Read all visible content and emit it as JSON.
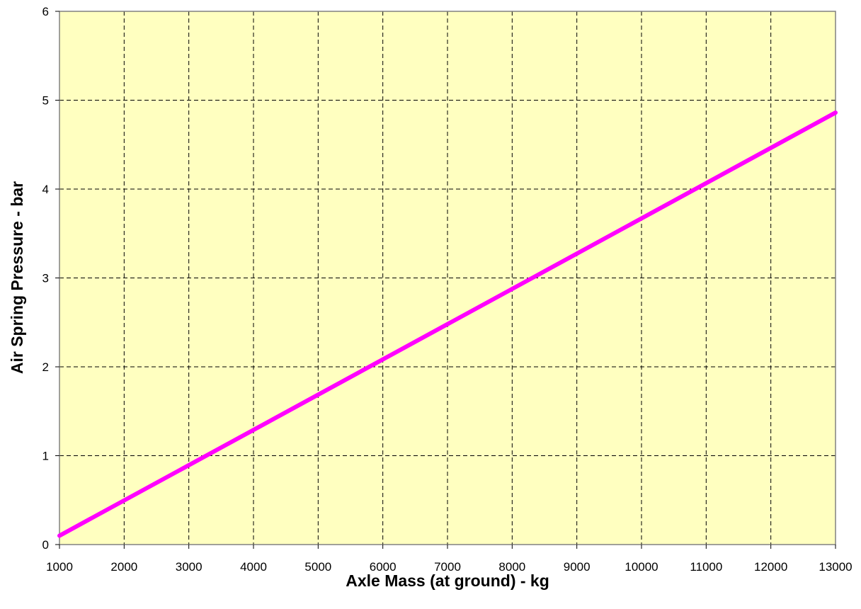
{
  "chart_data": {
    "type": "line",
    "title": "",
    "xlabel": "Axle Mass (at ground) - kg",
    "ylabel": "Air Spring Pressure - bar",
    "xlim": [
      1000,
      13000
    ],
    "ylim": [
      0,
      6
    ],
    "x_ticks": [
      1000,
      2000,
      3000,
      4000,
      5000,
      6000,
      7000,
      8000,
      9000,
      10000,
      11000,
      12000,
      13000
    ],
    "y_ticks": [
      0,
      1,
      2,
      3,
      4,
      5,
      6
    ],
    "grid": true,
    "legend": "none",
    "plot_background": "#ffffc0",
    "series": [
      {
        "color": "#ff00ff",
        "x": [
          1000,
          13000
        ],
        "y": [
          0.1,
          4.86
        ]
      }
    ]
  }
}
